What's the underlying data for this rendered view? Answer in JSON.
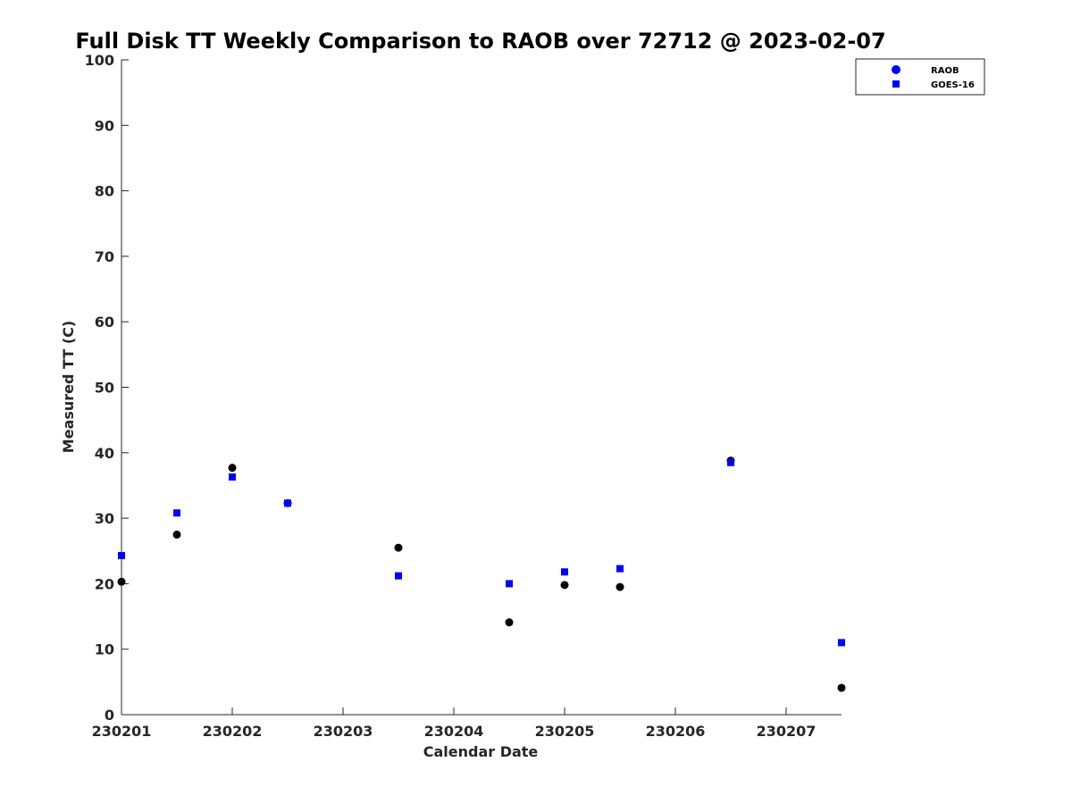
{
  "chart_data": {
    "type": "scatter",
    "title": "Full Disk TT Weekly Comparison to RAOB over 72712 @ 2023-02-07",
    "xlabel": "Calendar Date",
    "ylabel": "Measured TT (C)",
    "xlim": [
      230201,
      230207.5
    ],
    "ylim": [
      0,
      100
    ],
    "x_ticks": [
      {
        "value": 230201,
        "label": "230201"
      },
      {
        "value": 230202,
        "label": "230202"
      },
      {
        "value": 230203,
        "label": "230203"
      },
      {
        "value": 230204,
        "label": "230204"
      },
      {
        "value": 230205,
        "label": "230205"
      },
      {
        "value": 230206,
        "label": "230206"
      },
      {
        "value": 230207,
        "label": "230207"
      }
    ],
    "y_ticks": [
      {
        "value": 0,
        "label": "0"
      },
      {
        "value": 10,
        "label": "10"
      },
      {
        "value": 20,
        "label": "20"
      },
      {
        "value": 30,
        "label": "30"
      },
      {
        "value": 40,
        "label": "40"
      },
      {
        "value": 50,
        "label": "50"
      },
      {
        "value": 60,
        "label": "60"
      },
      {
        "value": 70,
        "label": "70"
      },
      {
        "value": 80,
        "label": "80"
      },
      {
        "value": 90,
        "label": "90"
      },
      {
        "value": 100,
        "label": "100"
      }
    ],
    "grid": false,
    "legend_position": "top-right",
    "legend": [
      {
        "name": "RAOB",
        "marker": "circle",
        "color": "#0000ff"
      },
      {
        "name": "GOES-16",
        "marker": "square",
        "color": "#0000ff"
      }
    ],
    "series": [
      {
        "name": "RAOB",
        "marker": "circle",
        "color": "#000000",
        "x": [
          230201,
          230201.5,
          230202,
          230202.5,
          230203.5,
          230204.5,
          230205,
          230205.5,
          230206.5,
          230207.5
        ],
        "y": [
          20.3,
          27.5,
          37.7,
          32.3,
          25.5,
          14.1,
          19.8,
          19.5,
          38.8,
          4.1
        ]
      },
      {
        "name": "GOES-16",
        "marker": "square",
        "color": "#0000ff",
        "x": [
          230201,
          230201.5,
          230202,
          230202.5,
          230203.5,
          230204.5,
          230205,
          230205.5,
          230206.5,
          230207.5
        ],
        "y": [
          24.3,
          30.8,
          36.3,
          32.3,
          21.2,
          20.0,
          21.8,
          22.3,
          38.5,
          11.0
        ]
      }
    ]
  }
}
